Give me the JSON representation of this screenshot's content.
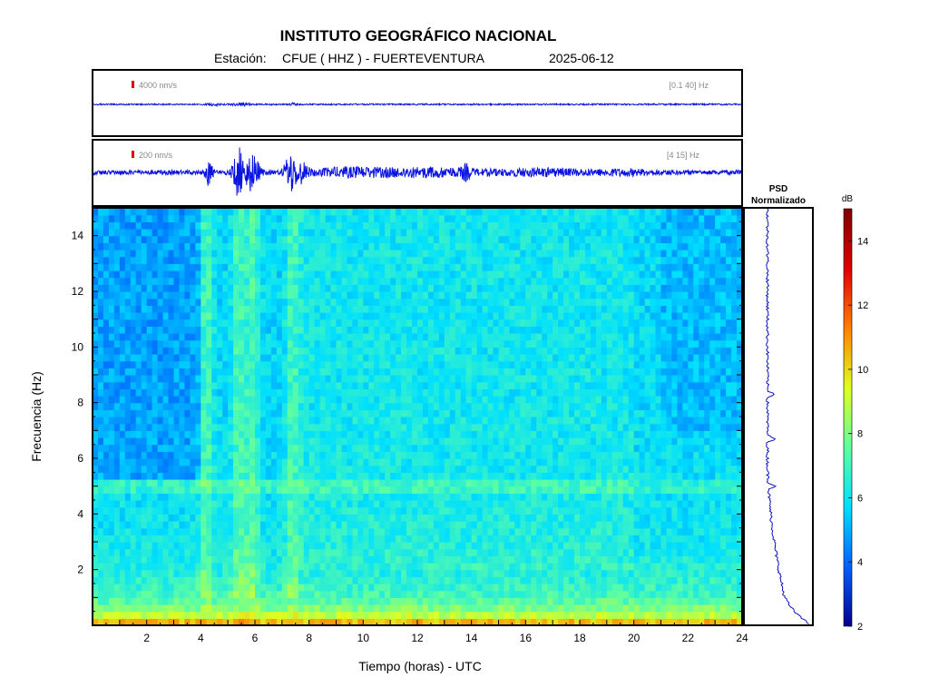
{
  "header": {
    "title": "INSTITUTO GEOGRÁFICO NACIONAL",
    "station_prefix": "Estación:",
    "station": "CFUE ( HHZ ) - FUERTEVENTURA",
    "date": "2025-06-12"
  },
  "chart_data": {
    "type": "heatmap",
    "title": "INSTITUTO GEOGRÁFICO NACIONAL",
    "subtitle": "Estación:  CFUE ( HHZ ) - FUERTEVENTURA   2025-06-12",
    "xlabel": "Tiempo (horas) - UTC",
    "ylabel": "Frecuencia  (Hz)",
    "xlim": [
      0,
      24
    ],
    "ylim": [
      0,
      15
    ],
    "x_ticks": [
      2,
      4,
      6,
      8,
      10,
      12,
      14,
      16,
      18,
      20,
      22,
      24
    ],
    "y_ticks": [
      2,
      4,
      6,
      8,
      10,
      12,
      14
    ],
    "colorbar": {
      "label": "dB",
      "range": [
        2,
        15
      ],
      "ticks": [
        2,
        4,
        6,
        8,
        10,
        12,
        14
      ],
      "colors": [
        "#00008f",
        "#0060ff",
        "#00dfff",
        "#60ff9f",
        "#dfff20",
        "#ff8000",
        "#df0000",
        "#800000"
      ]
    },
    "traces": [
      {
        "scale_label": "4000 nm/s",
        "band_label": "[0.1 40] Hz"
      },
      {
        "scale_label": "200 nm/s",
        "band_label": "[4 15] Hz"
      }
    ],
    "psd_title_1": "PSD",
    "psd_title_2": "Normalizado",
    "events_hours": [
      4.2,
      5.4,
      5.9,
      7.4
    ],
    "psd_peaks_hz": [
      8.3,
      6.7,
      5.0
    ]
  }
}
